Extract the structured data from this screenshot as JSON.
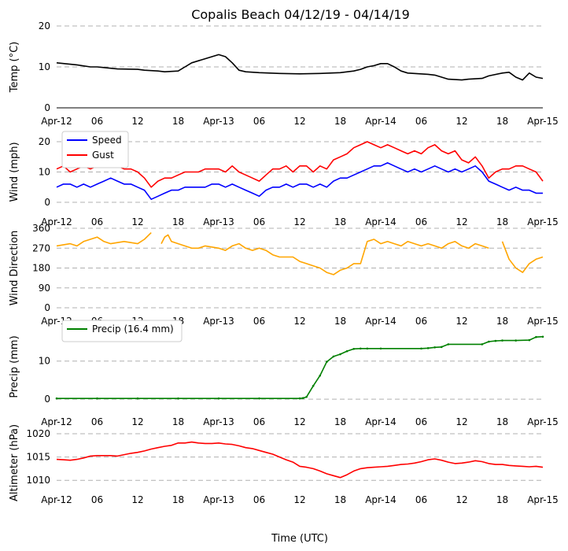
{
  "title": "Copalis Beach 04/12/19 - 04/14/19",
  "xlabel": "Time (UTC)",
  "x_tick_labels": [
    "Apr-12",
    "06",
    "12",
    "18",
    "Apr-13",
    "06",
    "12",
    "18",
    "Apr-14",
    "06",
    "12",
    "18",
    "Apr-15"
  ],
  "chart_data": [
    {
      "type": "line",
      "ylabel": "Temp (°C)",
      "ylim": [
        0,
        20
      ],
      "yticks": [
        0,
        10,
        20
      ],
      "x_hours": [
        0,
        3,
        5,
        6,
        9,
        12,
        13,
        15,
        16,
        18,
        19,
        20,
        21,
        22,
        23,
        24,
        25,
        26,
        27,
        28,
        30,
        33,
        36,
        39,
        42,
        44,
        45,
        46,
        47,
        48,
        49,
        50,
        51,
        52,
        55,
        56,
        57,
        58,
        60,
        61,
        63,
        64,
        66,
        67,
        68,
        69,
        70,
        71,
        72
      ],
      "series": [
        {
          "name": "Temp",
          "color": "#000000",
          "values": [
            11.0,
            10.5,
            10.0,
            10.0,
            9.5,
            9.4,
            9.2,
            9.0,
            8.8,
            9.0,
            10.0,
            11.0,
            11.5,
            12.0,
            12.5,
            13.0,
            12.5,
            11.0,
            9.2,
            8.8,
            8.6,
            8.4,
            8.3,
            8.4,
            8.6,
            9.0,
            9.4,
            10.0,
            10.3,
            10.8,
            10.8,
            10.0,
            9.0,
            8.5,
            8.2,
            8.0,
            7.5,
            7.0,
            6.8,
            7.0,
            7.2,
            7.8,
            8.5,
            8.7,
            7.5,
            6.8,
            8.5,
            7.5,
            7.2
          ]
        }
      ]
    },
    {
      "type": "line",
      "ylabel": "Wind (mph)",
      "ylim": [
        0,
        20
      ],
      "yticks": [
        0,
        10,
        20
      ],
      "legend": "top-left",
      "x_hours": [
        0,
        1,
        2,
        3,
        4,
        5,
        6,
        7,
        8,
        9,
        10,
        11,
        12,
        13,
        14,
        15,
        16,
        17,
        18,
        19,
        20,
        21,
        22,
        23,
        24,
        25,
        26,
        27,
        28,
        29,
        30,
        31,
        32,
        33,
        34,
        35,
        36,
        37,
        38,
        39,
        40,
        41,
        42,
        43,
        44,
        45,
        46,
        47,
        48,
        49,
        50,
        51,
        52,
        53,
        54,
        55,
        56,
        57,
        58,
        59,
        60,
        61,
        62,
        63,
        64,
        65,
        66,
        67,
        68,
        69,
        70,
        71,
        72
      ],
      "series": [
        {
          "name": "Speed",
          "color": "#0000ff",
          "values": [
            5,
            6,
            6,
            5,
            6,
            5,
            6,
            7,
            8,
            7,
            6,
            6,
            5,
            4,
            1,
            2,
            3,
            4,
            4,
            5,
            5,
            5,
            5,
            6,
            6,
            5,
            6,
            5,
            4,
            3,
            2,
            4,
            5,
            5,
            6,
            5,
            6,
            6,
            5,
            6,
            5,
            7,
            8,
            8,
            9,
            10,
            11,
            12,
            12,
            13,
            12,
            11,
            10,
            11,
            10,
            11,
            12,
            11,
            10,
            11,
            10,
            11,
            12,
            10,
            7,
            6,
            5,
            4,
            5,
            4,
            4,
            3,
            3
          ]
        },
        {
          "name": "Gust",
          "color": "#ff0000",
          "values": [
            11,
            12,
            10,
            11,
            12,
            11,
            12,
            13,
            13,
            12,
            11,
            11,
            10,
            8,
            5,
            7,
            8,
            8,
            9,
            10,
            10,
            10,
            11,
            11,
            11,
            10,
            12,
            10,
            9,
            8,
            7,
            9,
            11,
            11,
            12,
            10,
            12,
            12,
            10,
            12,
            11,
            14,
            15,
            16,
            18,
            19,
            20,
            19,
            18,
            19,
            18,
            17,
            16,
            17,
            16,
            18,
            19,
            17,
            16,
            17,
            14,
            13,
            15,
            12,
            8,
            10,
            11,
            11,
            12,
            12,
            11,
            10,
            7
          ]
        }
      ],
      "legend_entries": [
        "Speed",
        "Gust"
      ]
    },
    {
      "type": "line",
      "ylabel": "Wind Direction",
      "ylim": [
        0,
        360
      ],
      "yticks": [
        0,
        90,
        180,
        270,
        360
      ],
      "x_hours": [
        0,
        2,
        3,
        4,
        5,
        6,
        7,
        8,
        10,
        12,
        13,
        14,
        15,
        15.5,
        16,
        16.5,
        17,
        18,
        20,
        21,
        22,
        24,
        25,
        26,
        27,
        28,
        29,
        30,
        31,
        32,
        33,
        35,
        36,
        37,
        38,
        39,
        40,
        41,
        42,
        43,
        44,
        45,
        46,
        47,
        48,
        49,
        50,
        51,
        52,
        53,
        54,
        55,
        56,
        57,
        58,
        59,
        60,
        61,
        62,
        63,
        64,
        65,
        66,
        67,
        68,
        69,
        70,
        71,
        72
      ],
      "series": [
        {
          "name": "Direction",
          "color": "#ffa500",
          "values": [
            280,
            290,
            280,
            300,
            310,
            320,
            300,
            290,
            300,
            290,
            310,
            340,
            null,
            290,
            320,
            330,
            300,
            290,
            270,
            270,
            280,
            270,
            260,
            280,
            290,
            270,
            260,
            270,
            260,
            240,
            230,
            230,
            210,
            200,
            190,
            180,
            160,
            150,
            170,
            180,
            200,
            200,
            300,
            310,
            290,
            300,
            290,
            280,
            300,
            290,
            280,
            290,
            280,
            270,
            290,
            300,
            280,
            270,
            290,
            280,
            270,
            null,
            300,
            220,
            180,
            160,
            200,
            220,
            230
          ]
        }
      ]
    },
    {
      "type": "line",
      "ylabel": "Precip (mm)",
      "ylim": [
        -1,
        18
      ],
      "yticks": [
        0,
        10
      ],
      "legend": "top-left",
      "x_hours": [
        0,
        6,
        12,
        18,
        24,
        30,
        36,
        36.5,
        37,
        38,
        39,
        40,
        41,
        42,
        43,
        44,
        45,
        46,
        48,
        54,
        55,
        56,
        57,
        58,
        63,
        64,
        65,
        66,
        68,
        70,
        71,
        72
      ],
      "series": [
        {
          "name": "Precip",
          "color": "#008000",
          "values": [
            0.2,
            0.2,
            0.2,
            0.2,
            0.2,
            0.2,
            0.2,
            0.3,
            0.6,
            3.5,
            6.2,
            9.8,
            11.2,
            11.8,
            12.6,
            13.2,
            13.3,
            13.3,
            13.3,
            13.3,
            13.4,
            13.6,
            13.7,
            14.4,
            14.4,
            15.1,
            15.3,
            15.4,
            15.4,
            15.5,
            16.3,
            16.4
          ]
        }
      ],
      "legend_entries": [
        "Precip (16.4 mm)"
      ]
    },
    {
      "type": "line",
      "ylabel": "Altimeter (hPa)",
      "ylim": [
        1007,
        1020.5
      ],
      "yticks": [
        1010,
        1015,
        1020
      ],
      "x_hours": [
        0,
        1,
        2,
        3,
        4,
        5,
        6,
        7,
        8,
        9,
        10,
        11,
        12,
        13,
        14,
        15,
        16,
        17,
        18,
        19,
        20,
        21,
        22,
        23,
        24,
        25,
        26,
        27,
        28,
        29,
        30,
        31,
        32,
        33,
        34,
        35,
        36,
        37,
        38,
        39,
        40,
        41,
        42,
        43,
        44,
        45,
        46,
        47,
        48,
        49,
        50,
        51,
        52,
        53,
        54,
        55,
        56,
        57,
        58,
        59,
        60,
        61,
        62,
        63,
        64,
        65,
        66,
        67,
        68,
        69,
        70,
        71,
        72
      ],
      "series": [
        {
          "name": "Altimeter",
          "color": "#ff0000",
          "values": [
            1014.5,
            1014.4,
            1014.3,
            1014.5,
            1014.8,
            1015.2,
            1015.3,
            1015.3,
            1015.3,
            1015.2,
            1015.5,
            1015.8,
            1016.0,
            1016.3,
            1016.7,
            1017.0,
            1017.3,
            1017.5,
            1018.0,
            1018.0,
            1018.2,
            1018.0,
            1017.9,
            1017.9,
            1018.0,
            1017.8,
            1017.7,
            1017.4,
            1017.0,
            1016.8,
            1016.4,
            1016.0,
            1015.6,
            1015.0,
            1014.4,
            1013.9,
            1013.0,
            1012.8,
            1012.5,
            1012.0,
            1011.4,
            1011.0,
            1010.6,
            1011.2,
            1012.0,
            1012.5,
            1012.7,
            1012.8,
            1012.9,
            1013.0,
            1013.2,
            1013.4,
            1013.5,
            1013.7,
            1014.0,
            1014.4,
            1014.6,
            1014.3,
            1013.9,
            1013.6,
            1013.7,
            1013.9,
            1014.2,
            1014.0,
            1013.6,
            1013.4,
            1013.4,
            1013.2,
            1013.1,
            1013.0,
            1012.9,
            1013.0,
            1012.8
          ]
        }
      ]
    }
  ]
}
